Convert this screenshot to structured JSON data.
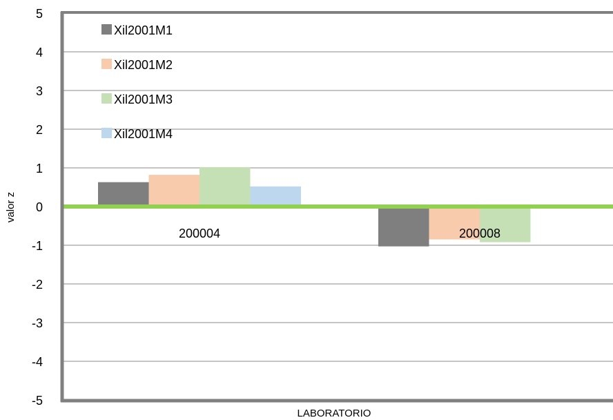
{
  "chart_data": {
    "type": "bar",
    "title": "",
    "xlabel": "LABORATORIO",
    "ylabel": "valor z",
    "ylim": [
      -5,
      5
    ],
    "yticks": [
      5,
      4,
      3,
      2,
      1,
      0,
      -1,
      -2,
      -3,
      -4,
      -5
    ],
    "grid": true,
    "legend_position": "top-left",
    "categories": [
      "200004",
      "200008"
    ],
    "series": [
      {
        "name": "Xil2001M1",
        "color": "#7f7f7f",
        "values": [
          0.63,
          -1.03
        ]
      },
      {
        "name": "Xil2001M2",
        "color": "#f8cbad",
        "values": [
          0.82,
          -0.85
        ]
      },
      {
        "name": "Xil2001M3",
        "color": "#c5e0b4",
        "values": [
          1.02,
          -0.92
        ]
      },
      {
        "name": "Xil2001M4",
        "color": "#bdd7ee",
        "values": [
          0.52,
          null
        ]
      }
    ],
    "zero_line_color": "#92d050",
    "frame_color": "#808080"
  }
}
